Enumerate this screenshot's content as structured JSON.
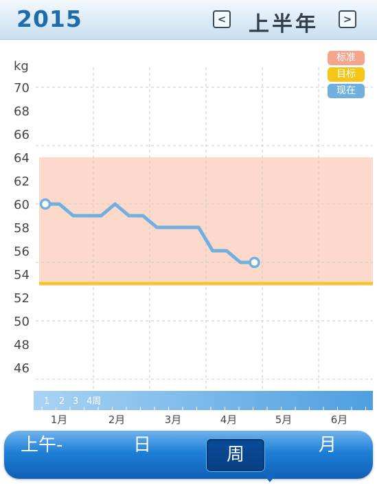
{
  "header": {
    "year": "2015",
    "period": "上半年",
    "prev_icon": "chevron-left-icon",
    "next_icon": "chevron-right-icon",
    "prev_glyph": "<",
    "next_glyph": ">"
  },
  "legend": {
    "standard": "标准",
    "target": "目标",
    "current": "现在"
  },
  "colors": {
    "standard": "#f6a58d",
    "target": "#f5c518",
    "current": "#6fb0e0",
    "band": "#fdd9cc",
    "header_text": "#1f6cad"
  },
  "chart_data": {
    "type": "line",
    "ylabel": "kg",
    "ylim": [
      45,
      70
    ],
    "yticks": [
      "70",
      "68",
      "66",
      "64",
      "62",
      "60",
      "58",
      "56",
      "54",
      "52",
      "50",
      "48",
      "46"
    ],
    "x_months": [
      "1月",
      "2月",
      "3月",
      "4月",
      "5月",
      "6月"
    ],
    "week_labels": [
      "1",
      "2",
      "3",
      "4周"
    ],
    "standard_range": [
      53,
      64
    ],
    "target": 53.2,
    "series": [
      {
        "name": "现在",
        "points": [
          {
            "week": 0,
            "value": 60
          },
          {
            "week": 1,
            "value": 60
          },
          {
            "week": 2,
            "value": 59
          },
          {
            "week": 4,
            "value": 59
          },
          {
            "week": 5,
            "value": 60
          },
          {
            "week": 6,
            "value": 59
          },
          {
            "week": 7,
            "value": 59
          },
          {
            "week": 8,
            "value": 58
          },
          {
            "week": 11,
            "value": 58
          },
          {
            "week": 12,
            "value": 56
          },
          {
            "week": 13,
            "value": 56
          },
          {
            "week": 14,
            "value": 55
          },
          {
            "week": 15,
            "value": 55
          }
        ]
      }
    ]
  },
  "tabs": {
    "am": "上午-",
    "day": "日",
    "week": "周",
    "month": "月"
  }
}
